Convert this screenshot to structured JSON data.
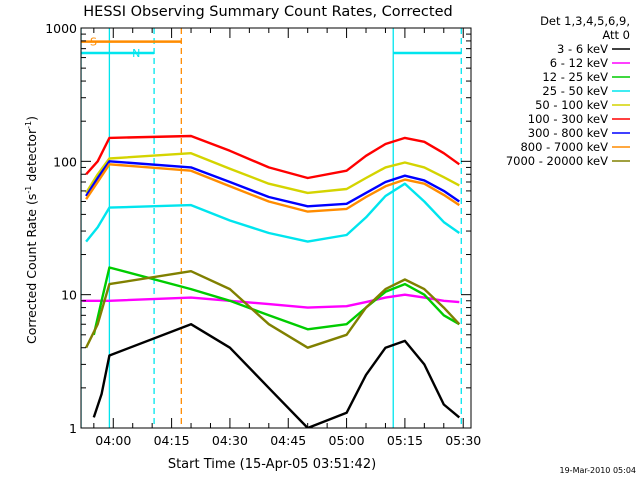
{
  "chart_data": {
    "type": "line",
    "title": "HESSI Observing Summary Count Rates, Corrected",
    "xlabel": "Start Time (15-Apr-05 03:51:42)",
    "ylabel": "Corrected Count Rate (s",
    "ylabel_sup1": "-1",
    "ylabel_mid": " detector",
    "ylabel_sup2": "-1",
    "ylabel_end": ")",
    "yscale": "log",
    "ylim": [
      1,
      1000
    ],
    "xlim": [
      "03:51:42",
      "05:32:00"
    ],
    "x_ticks": [
      "04:00",
      "04:15",
      "04:30",
      "04:45",
      "05:00",
      "05:15",
      "05:30"
    ],
    "y_ticks": [
      "1",
      "10",
      "100",
      "1000"
    ],
    "grid": false,
    "legend_position": "right",
    "legend_header": [
      "Det 1,3,4,5,6,9,",
      "Att 0"
    ],
    "timestamp": "19-Mar-2010 05:04",
    "annotations": {
      "saa_label": "S",
      "night_label": "N",
      "saa_color": "#ff8c00",
      "night_color": "#00e5ee",
      "saa_bar": {
        "start": "03:51:42",
        "end": "04:17:30",
        "level": 790
      },
      "night_bars": [
        {
          "start": "03:51:42",
          "end": "04:10:30",
          "level": 650
        },
        {
          "start": "05:12:00",
          "end": "05:29:30",
          "level": 650
        }
      ],
      "vlines": [
        {
          "time": "03:51:42",
          "color": "#00e5ee",
          "style": "solid"
        },
        {
          "time": "03:59:00",
          "color": "#00e5ee",
          "style": "solid"
        },
        {
          "time": "04:10:30",
          "color": "#00e5ee",
          "style": "dashed"
        },
        {
          "time": "04:17:30",
          "color": "#ff8c00",
          "style": "dashed"
        },
        {
          "time": "05:12:00",
          "color": "#00e5ee",
          "style": "solid"
        },
        {
          "time": "05:29:30",
          "color": "#00e5ee",
          "style": "dashed"
        }
      ]
    },
    "series": [
      {
        "name": "3 - 6 keV",
        "color": "#000000",
        "x": [
          "03:55",
          "03:57",
          "03:59",
          "04:20",
          "04:30",
          "04:40",
          "04:50",
          "05:00",
          "05:05",
          "05:10",
          "05:15",
          "05:20",
          "05:25",
          "05:29"
        ],
        "y": [
          1.2,
          1.8,
          3.5,
          6,
          4,
          2,
          1,
          1.3,
          2.5,
          4,
          4.5,
          3,
          1.5,
          1.2
        ]
      },
      {
        "name": "6 - 12 keV",
        "color": "#ff00ff",
        "x": [
          "03:52",
          "03:56",
          "03:59",
          "04:20",
          "04:30",
          "04:40",
          "04:50",
          "05:00",
          "05:05",
          "05:10",
          "05:15",
          "05:20",
          "05:25",
          "05:29"
        ],
        "y": [
          9,
          9,
          9,
          9.5,
          9,
          8.5,
          8,
          8.2,
          8.8,
          9.5,
          10,
          9.5,
          9,
          8.8
        ]
      },
      {
        "name": "12 - 25 keV",
        "color": "#00cc00",
        "x": [
          "03:55",
          "03:57",
          "03:59",
          "04:20",
          "04:30",
          "04:40",
          "04:50",
          "05:00",
          "05:05",
          "05:10",
          "05:15",
          "05:20",
          "05:25",
          "05:29"
        ],
        "y": [
          5,
          9,
          16,
          11,
          9,
          7,
          5.5,
          6,
          8,
          10.5,
          12,
          10,
          7,
          6
        ]
      },
      {
        "name": "25 - 50 keV",
        "color": "#00e5ee",
        "x": [
          "03:53",
          "03:56",
          "03:59",
          "04:20",
          "04:30",
          "04:40",
          "04:50",
          "05:00",
          "05:05",
          "05:10",
          "05:15",
          "05:20",
          "05:25",
          "05:29"
        ],
        "y": [
          25,
          32,
          45,
          47,
          36,
          29,
          25,
          28,
          38,
          55,
          68,
          50,
          35,
          29
        ]
      },
      {
        "name": "50 - 100 keV",
        "color": "#d4d400",
        "x": [
          "03:53",
          "03:56",
          "03:59",
          "04:20",
          "04:30",
          "04:40",
          "04:50",
          "05:00",
          "05:05",
          "05:10",
          "05:15",
          "05:20",
          "05:25",
          "05:29"
        ],
        "y": [
          58,
          80,
          105,
          115,
          88,
          68,
          58,
          62,
          75,
          90,
          98,
          90,
          76,
          66
        ]
      },
      {
        "name": "100 - 300 keV",
        "color": "#ff0000",
        "x": [
          "03:53",
          "03:56",
          "03:59",
          "04:20",
          "04:30",
          "04:40",
          "04:50",
          "05:00",
          "05:05",
          "05:10",
          "05:15",
          "05:20",
          "05:25",
          "05:29"
        ],
        "y": [
          80,
          100,
          150,
          155,
          120,
          90,
          75,
          85,
          110,
          135,
          150,
          140,
          115,
          95
        ]
      },
      {
        "name": "300 - 800 keV",
        "color": "#0000ff",
        "x": [
          "03:53",
          "03:56",
          "03:59",
          "04:20",
          "04:30",
          "04:40",
          "04:50",
          "05:00",
          "05:05",
          "05:10",
          "05:15",
          "05:20",
          "05:25",
          "05:29"
        ],
        "y": [
          55,
          75,
          100,
          90,
          70,
          54,
          46,
          48,
          58,
          70,
          78,
          72,
          60,
          50
        ]
      },
      {
        "name": "800 - 7000 keV",
        "color": "#ff8c00",
        "x": [
          "03:53",
          "03:56",
          "03:59",
          "04:20",
          "04:30",
          "04:40",
          "04:50",
          "05:00",
          "05:05",
          "05:10",
          "05:15",
          "05:20",
          "05:25",
          "05:29"
        ],
        "y": [
          52,
          70,
          95,
          85,
          65,
          50,
          42,
          44,
          54,
          65,
          73,
          68,
          56,
          47
        ]
      },
      {
        "name": "7000 - 20000 keV",
        "color": "#808000",
        "x": [
          "03:53",
          "03:56",
          "03:59",
          "04:20",
          "04:30",
          "04:40",
          "04:50",
          "05:00",
          "05:05",
          "05:10",
          "05:15",
          "05:20",
          "05:25",
          "05:29"
        ],
        "y": [
          4,
          6,
          12,
          15,
          11,
          6,
          4,
          5,
          8,
          11,
          13,
          11,
          8,
          6
        ]
      }
    ]
  }
}
